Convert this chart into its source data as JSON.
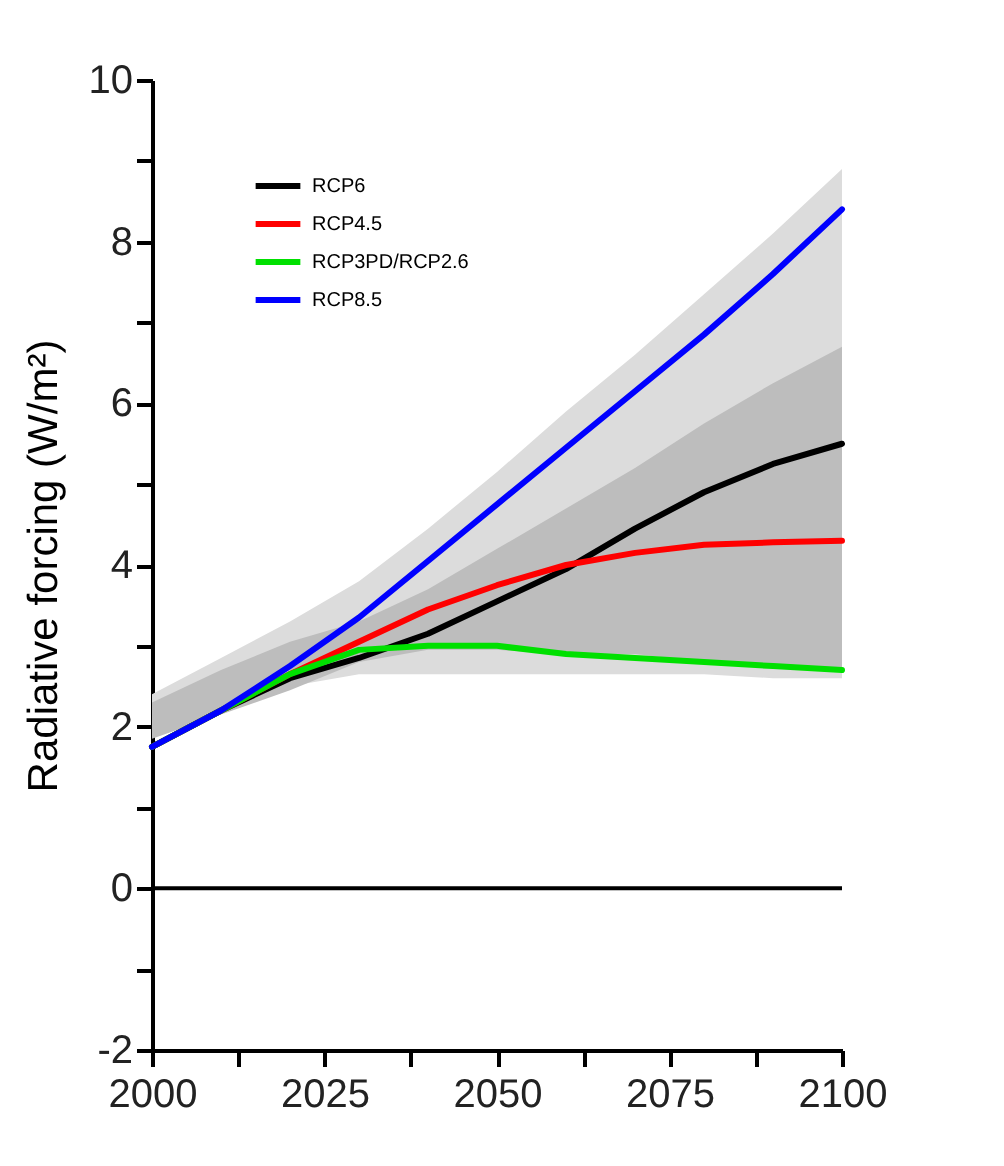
{
  "chart_data": {
    "type": "line",
    "ylabel": "Radiative forcing (W/m²)",
    "x": [
      2000,
      2010,
      2020,
      2030,
      2040,
      2050,
      2060,
      2070,
      2080,
      2090,
      2100
    ],
    "series": [
      {
        "name": "RCP6",
        "color": "#000000",
        "values": [
          1.75,
          2.2,
          2.6,
          2.85,
          3.15,
          3.55,
          3.95,
          4.45,
          4.9,
          5.25,
          5.5
        ],
        "lower": [
          1.85,
          2.15,
          2.45,
          2.8,
          2.95,
          2.95,
          2.9,
          2.9,
          2.8,
          2.75,
          2.7
        ],
        "upper": [
          2.3,
          2.7,
          3.05,
          3.3,
          3.7,
          4.2,
          4.7,
          5.2,
          5.75,
          6.25,
          6.7
        ]
      },
      {
        "name": "RCP4.5",
        "color": "#ff0000",
        "values": [
          1.75,
          2.2,
          2.65,
          3.05,
          3.45,
          3.75,
          4.0,
          4.15,
          4.25,
          4.28,
          4.3
        ]
      },
      {
        "name": "RCP3PD/RCP2.6",
        "color": "#00e000",
        "values": [
          1.75,
          2.2,
          2.65,
          2.95,
          3.0,
          3.0,
          2.9,
          2.85,
          2.8,
          2.75,
          2.7
        ]
      },
      {
        "name": "RCP8.5",
        "color": "#0000ff",
        "values": [
          1.75,
          2.2,
          2.75,
          3.35,
          4.05,
          4.75,
          5.45,
          6.15,
          6.85,
          7.6,
          8.4
        ],
        "lower": [
          1.9,
          2.2,
          2.5,
          2.65,
          2.65,
          2.65,
          2.65,
          2.65,
          2.65,
          2.6,
          2.6
        ],
        "upper": [
          2.4,
          2.85,
          3.3,
          3.8,
          4.45,
          5.15,
          5.9,
          6.6,
          7.35,
          8.1,
          8.9
        ]
      }
    ],
    "xlim": [
      2000,
      2100
    ],
    "xticks": [
      2000,
      {
        "value": 2012.5,
        "label": null
      },
      2025,
      {
        "value": 2037.5,
        "label": null
      },
      2050,
      {
        "value": 2062.5,
        "label": null
      },
      2075,
      {
        "value": 2087.5,
        "label": null
      },
      2100
    ],
    "ylim": [
      -2,
      10
    ],
    "yticks": [
      -2,
      {
        "value": -1,
        "label": null
      },
      0,
      {
        "value": 1,
        "label": null
      },
      2,
      {
        "value": 3,
        "label": null
      },
      4,
      {
        "value": 5,
        "label": null
      },
      6,
      {
        "value": 7,
        "label": null
      },
      8,
      {
        "value": 9,
        "label": null
      },
      10
    ],
    "ref_lines": [
      {
        "axis": "y",
        "value": 0,
        "color": "#000000"
      }
    ],
    "legend": "top left",
    "grid": false,
    "marker": "none",
    "line_style": "solid"
  }
}
